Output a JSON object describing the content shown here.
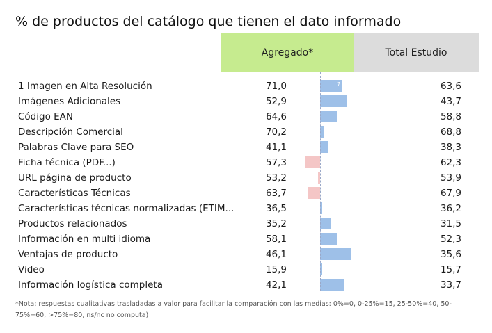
{
  "title": "% de productos del catálogo que tienen el dato informado",
  "headers": {
    "agregado": "Agregado*",
    "total": "Total Estudio"
  },
  "colors": {
    "agregado_header": "#c6eb8f",
    "total_header": "#dcdcdc",
    "bar_positive": "#9ec0e8",
    "bar_negative": "#f4c6c6"
  },
  "rows": [
    {
      "label": "1 Imagen en Alta Resolución",
      "agregado": "71,0",
      "total": "63,6",
      "bar_tag": "7"
    },
    {
      "label": "Imágenes Adicionales",
      "agregado": "52,9",
      "total": "43,7"
    },
    {
      "label": "Código EAN",
      "agregado": "64,6",
      "total": "58,8"
    },
    {
      "label": "Descripción Comercial",
      "agregado": "70,2",
      "total": "68,8"
    },
    {
      "label": "Palabras Clave para SEO",
      "agregado": "41,1",
      "total": "38,3"
    },
    {
      "label": "Ficha técnica (PDF...)",
      "agregado": "57,3",
      "total": "62,3"
    },
    {
      "label": "URL página de producto",
      "agregado": "53,2",
      "total": "53,9"
    },
    {
      "label": "Características Técnicas",
      "agregado": "63,7",
      "total": "67,9"
    },
    {
      "label": "Características técnicas normalizadas (ETIM...",
      "agregado": "36,5",
      "total": "36,2"
    },
    {
      "label": "Productos relacionados",
      "agregado": "35,2",
      "total": "31,5"
    },
    {
      "label": "Información en multi idioma",
      "agregado": "58,1",
      "total": "52,3"
    },
    {
      "label": "Ventajas de producto",
      "agregado": "46,1",
      "total": "35,6"
    },
    {
      "label": "Video",
      "agregado": "15,9",
      "total": "15,7"
    },
    {
      "label": "Información logística completa",
      "agregado": "42,1",
      "total": "33,7"
    }
  ],
  "footnote": "*Nota: respuestas cualitativas trasladadas a valor para facilitar la comparación con las medias: 0%=0, 0-25%=15, 25-50%=40, 50-75%=60, >75%=80, ns/nc no computa)"
}
